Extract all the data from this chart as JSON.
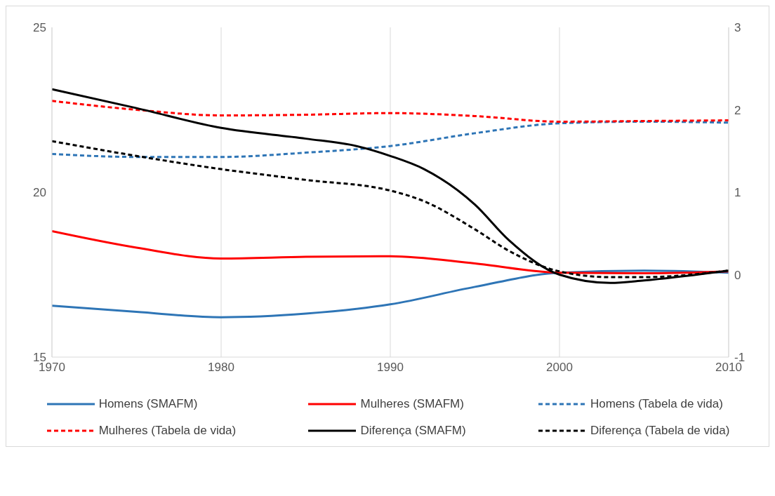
{
  "chart_data": {
    "type": "line",
    "x": [
      1970,
      1975,
      1980,
      1985,
      1990,
      1995,
      2000,
      2005,
      2010
    ],
    "series": [
      {
        "name": "Homens (SMAFM)",
        "color": "#2e75b6",
        "line_style": "solid",
        "values": [
          16.56,
          16.37,
          16.21,
          16.32,
          16.6,
          17.13,
          17.56,
          17.62,
          17.56
        ]
      },
      {
        "name": "Mulheres (SMAFM)",
        "color": "#ff0000",
        "line_style": "solid",
        "values": [
          18.82,
          18.32,
          17.99,
          18.04,
          18.06,
          17.84,
          17.56,
          17.54,
          17.6
        ]
      },
      {
        "name": "Homens (Tabela de vida)",
        "color": "#2e75b6",
        "line_style": "dashed",
        "values": [
          21.16,
          21.07,
          21.07,
          21.2,
          21.4,
          21.79,
          22.09,
          22.14,
          22.11
        ]
      },
      {
        "name": "Mulheres (Tabela de vida)",
        "color": "#ff0000",
        "line_style": "dashed",
        "values": [
          22.77,
          22.5,
          22.33,
          22.35,
          22.4,
          22.31,
          22.14,
          22.16,
          22.18
        ]
      },
      {
        "name": "Diferença (SMAFM)",
        "color": "#000000",
        "line_style": "solid",
        "axis": "y2",
        "x": [
          1970,
          1975,
          1980,
          1985,
          1988,
          1990,
          1992,
          1995,
          1997,
          2000,
          2003,
          2005,
          2010
        ],
        "values": [
          2.25,
          2.02,
          1.78,
          1.65,
          1.56,
          1.44,
          1.28,
          0.85,
          0.42,
          0,
          -0.1,
          -0.07,
          0.05
        ]
      },
      {
        "name": "Diferença (Tabela de vida)",
        "color": "#000000",
        "line_style": "dashed",
        "axis": "y2",
        "x": [
          1970,
          1975,
          1980,
          1985,
          1990,
          1992,
          1995,
          1997,
          2000,
          2003,
          2005,
          2010
        ],
        "values": [
          1.62,
          1.44,
          1.28,
          1.15,
          1.02,
          0.89,
          0.55,
          0.29,
          0.04,
          -0.03,
          -0.03,
          0.05
        ]
      }
    ],
    "xlim": [
      1970,
      2010
    ],
    "xticks": [
      1970,
      1980,
      1990,
      2000,
      2010
    ],
    "ylim": [
      15,
      25
    ],
    "yticks": [
      15,
      20,
      25
    ],
    "y2lim": [
      -1,
      3
    ],
    "y2ticks": [
      -1,
      0,
      1,
      2,
      3
    ],
    "grid": "x",
    "legend": "bottom",
    "marker": "none"
  }
}
